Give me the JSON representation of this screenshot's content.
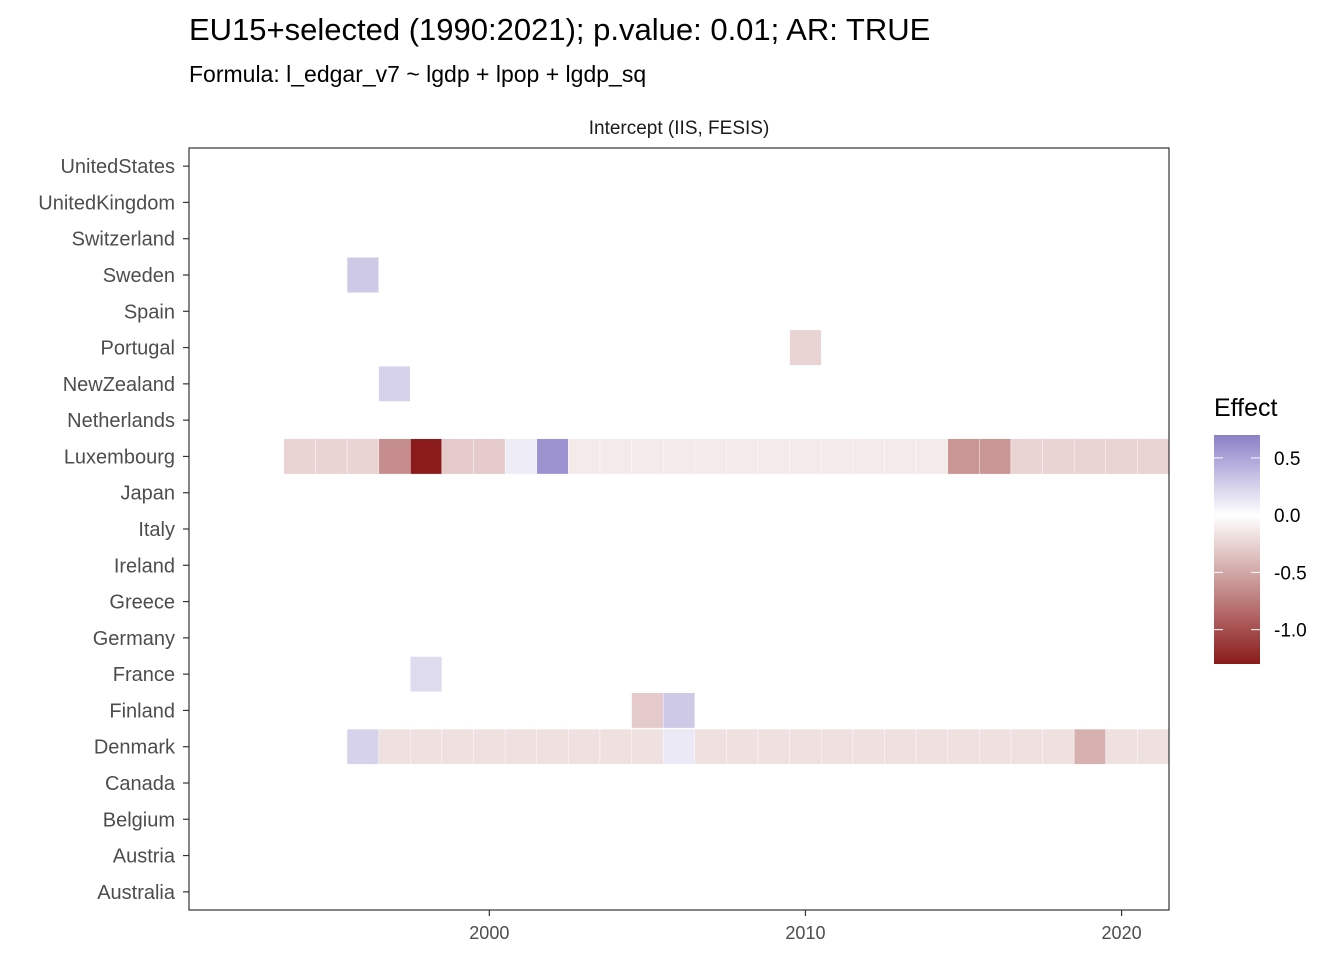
{
  "chart_data": {
    "type": "heatmap",
    "title": "EU15+selected (1990:2021); p.value: 0.01; AR: TRUE",
    "subtitle": "Formula: l_edgar_v7 ~ lgdp + lpop + lgdp_sq",
    "facet_label": "Intercept (IIS, FESIS)",
    "xlim": [
      1990.5,
      2021.5
    ],
    "x_ticks": [
      "2000",
      "2010",
      "2020"
    ],
    "x_tick_values": [
      2000,
      2010,
      2020
    ],
    "grid": false,
    "countries": [
      "UnitedStates",
      "UnitedKingdom",
      "Switzerland",
      "Sweden",
      "Spain",
      "Portugal",
      "NewZealand",
      "Netherlands",
      "Luxembourg",
      "Japan",
      "Italy",
      "Ireland",
      "Greece",
      "Germany",
      "France",
      "Finland",
      "Denmark",
      "Canada",
      "Belgium",
      "Austria",
      "Australia"
    ],
    "cells": [
      {
        "country": "Sweden",
        "year": 1996,
        "effect": 0.3
      },
      {
        "country": "Portugal",
        "year": 2010,
        "effect": -0.25
      },
      {
        "country": "NewZealand",
        "year": 1997,
        "effect": 0.25
      },
      {
        "country": "France",
        "year": 1998,
        "effect": 0.2
      },
      {
        "country": "Finland",
        "year": 2005,
        "effect": -0.3
      },
      {
        "country": "Finland",
        "year": 2006,
        "effect": 0.3
      },
      {
        "country": "Luxembourg",
        "year": 1994,
        "effect": -0.25
      },
      {
        "country": "Luxembourg",
        "year": 1995,
        "effect": -0.25
      },
      {
        "country": "Luxembourg",
        "year": 1996,
        "effect": -0.25
      },
      {
        "country": "Luxembourg",
        "year": 1997,
        "effect": -0.65
      },
      {
        "country": "Luxembourg",
        "year": 1998,
        "effect": -1.3
      },
      {
        "country": "Luxembourg",
        "year": 1999,
        "effect": -0.3
      },
      {
        "country": "Luxembourg",
        "year": 2000,
        "effect": -0.3
      },
      {
        "country": "Luxembourg",
        "year": 2001,
        "effect": 0.1
      },
      {
        "country": "Luxembourg",
        "year": 2002,
        "effect": 0.6
      },
      {
        "country": "Luxembourg",
        "year": 2003,
        "effect": -0.12
      },
      {
        "country": "Luxembourg",
        "year": 2004,
        "effect": -0.12
      },
      {
        "country": "Luxembourg",
        "year": 2005,
        "effect": -0.12
      },
      {
        "country": "Luxembourg",
        "year": 2006,
        "effect": -0.12
      },
      {
        "country": "Luxembourg",
        "year": 2007,
        "effect": -0.12
      },
      {
        "country": "Luxembourg",
        "year": 2008,
        "effect": -0.12
      },
      {
        "country": "Luxembourg",
        "year": 2009,
        "effect": -0.12
      },
      {
        "country": "Luxembourg",
        "year": 2010,
        "effect": -0.12
      },
      {
        "country": "Luxembourg",
        "year": 2011,
        "effect": -0.12
      },
      {
        "country": "Luxembourg",
        "year": 2012,
        "effect": -0.12
      },
      {
        "country": "Luxembourg",
        "year": 2013,
        "effect": -0.12
      },
      {
        "country": "Luxembourg",
        "year": 2014,
        "effect": -0.12
      },
      {
        "country": "Luxembourg",
        "year": 2015,
        "effect": -0.6
      },
      {
        "country": "Luxembourg",
        "year": 2016,
        "effect": -0.6
      },
      {
        "country": "Luxembourg",
        "year": 2017,
        "effect": -0.25
      },
      {
        "country": "Luxembourg",
        "year": 2018,
        "effect": -0.25
      },
      {
        "country": "Luxembourg",
        "year": 2019,
        "effect": -0.25
      },
      {
        "country": "Luxembourg",
        "year": 2020,
        "effect": -0.25
      },
      {
        "country": "Luxembourg",
        "year": 2021,
        "effect": -0.25
      },
      {
        "country": "Denmark",
        "year": 1996,
        "effect": 0.25
      },
      {
        "country": "Denmark",
        "year": 1997,
        "effect": -0.17
      },
      {
        "country": "Denmark",
        "year": 1998,
        "effect": -0.17
      },
      {
        "country": "Denmark",
        "year": 1999,
        "effect": -0.17
      },
      {
        "country": "Denmark",
        "year": 2000,
        "effect": -0.17
      },
      {
        "country": "Denmark",
        "year": 2001,
        "effect": -0.17
      },
      {
        "country": "Denmark",
        "year": 2002,
        "effect": -0.17
      },
      {
        "country": "Denmark",
        "year": 2003,
        "effect": -0.17
      },
      {
        "country": "Denmark",
        "year": 2004,
        "effect": -0.17
      },
      {
        "country": "Denmark",
        "year": 2005,
        "effect": -0.17
      },
      {
        "country": "Denmark",
        "year": 2006,
        "effect": 0.12
      },
      {
        "country": "Denmark",
        "year": 2007,
        "effect": -0.17
      },
      {
        "country": "Denmark",
        "year": 2008,
        "effect": -0.17
      },
      {
        "country": "Denmark",
        "year": 2009,
        "effect": -0.17
      },
      {
        "country": "Denmark",
        "year": 2010,
        "effect": -0.17
      },
      {
        "country": "Denmark",
        "year": 2011,
        "effect": -0.17
      },
      {
        "country": "Denmark",
        "year": 2012,
        "effect": -0.17
      },
      {
        "country": "Denmark",
        "year": 2013,
        "effect": -0.17
      },
      {
        "country": "Denmark",
        "year": 2014,
        "effect": -0.17
      },
      {
        "country": "Denmark",
        "year": 2015,
        "effect": -0.17
      },
      {
        "country": "Denmark",
        "year": 2016,
        "effect": -0.17
      },
      {
        "country": "Denmark",
        "year": 2017,
        "effect": -0.17
      },
      {
        "country": "Denmark",
        "year": 2018,
        "effect": -0.17
      },
      {
        "country": "Denmark",
        "year": 2019,
        "effect": -0.45
      },
      {
        "country": "Denmark",
        "year": 2020,
        "effect": -0.17
      },
      {
        "country": "Denmark",
        "year": 2021,
        "effect": -0.17
      }
    ],
    "legend": {
      "title": "Effect",
      "position": "right",
      "range": [
        -1.3,
        0.7
      ],
      "ticks": [
        "0.5",
        "0.0",
        "-0.5",
        "-1.0"
      ],
      "tick_values": [
        0.5,
        0.0,
        -0.5,
        -1.0
      ],
      "colors": {
        "high": "#8b80c8",
        "mid": "#ffffff",
        "low": "#8b1a1a"
      }
    }
  }
}
